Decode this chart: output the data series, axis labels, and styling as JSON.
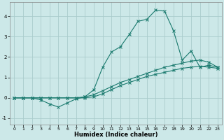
{
  "xlabel": "Humidex (Indice chaleur)",
  "bg_color": "#cce8e8",
  "grid_color": "#aacccc",
  "line_color": "#1a7a6e",
  "xlim": [
    -0.5,
    23.5
  ],
  "ylim": [
    -1.3,
    4.7
  ],
  "yticks": [
    -1,
    0,
    1,
    2,
    3,
    4
  ],
  "xticks": [
    0,
    1,
    2,
    3,
    4,
    5,
    6,
    7,
    8,
    9,
    10,
    11,
    12,
    13,
    14,
    15,
    16,
    17,
    18,
    19,
    20,
    21,
    22,
    23
  ],
  "curve_x": [
    0,
    1,
    2,
    3,
    4,
    5,
    6,
    7,
    8,
    9,
    10,
    11,
    12,
    13,
    14,
    15,
    16,
    17,
    18,
    19,
    20,
    21,
    22,
    23
  ],
  "curve_y": [
    0,
    0,
    0,
    -0.1,
    -0.3,
    -0.45,
    -0.25,
    -0.05,
    0.05,
    0.4,
    1.5,
    2.25,
    2.5,
    3.1,
    3.75,
    3.85,
    4.3,
    4.25,
    3.3,
    1.85,
    2.3,
    1.5,
    1.6,
    1.5
  ],
  "line1_x": [
    0,
    1,
    2,
    3,
    4,
    5,
    6,
    7,
    8,
    9,
    10,
    11,
    12,
    13,
    14,
    15,
    16,
    17,
    18,
    19,
    20,
    21,
    22,
    23
  ],
  "line1_y": [
    0,
    0,
    0,
    0,
    0,
    0,
    0,
    0,
    0.05,
    0.15,
    0.35,
    0.55,
    0.75,
    0.9,
    1.05,
    1.2,
    1.35,
    1.5,
    1.6,
    1.7,
    1.8,
    1.85,
    1.75,
    1.5
  ],
  "line2_x": [
    0,
    1,
    2,
    3,
    4,
    5,
    6,
    7,
    8,
    9,
    10,
    11,
    12,
    13,
    14,
    15,
    16,
    17,
    18,
    19,
    20,
    21,
    22,
    23
  ],
  "line2_y": [
    0,
    0,
    0,
    0,
    0,
    0,
    0,
    0,
    0.0,
    0.05,
    0.2,
    0.4,
    0.6,
    0.75,
    0.9,
    1.05,
    1.15,
    1.25,
    1.35,
    1.45,
    1.5,
    1.55,
    1.5,
    1.45
  ],
  "marker": "x",
  "marker_size": 3,
  "linewidth": 0.8
}
